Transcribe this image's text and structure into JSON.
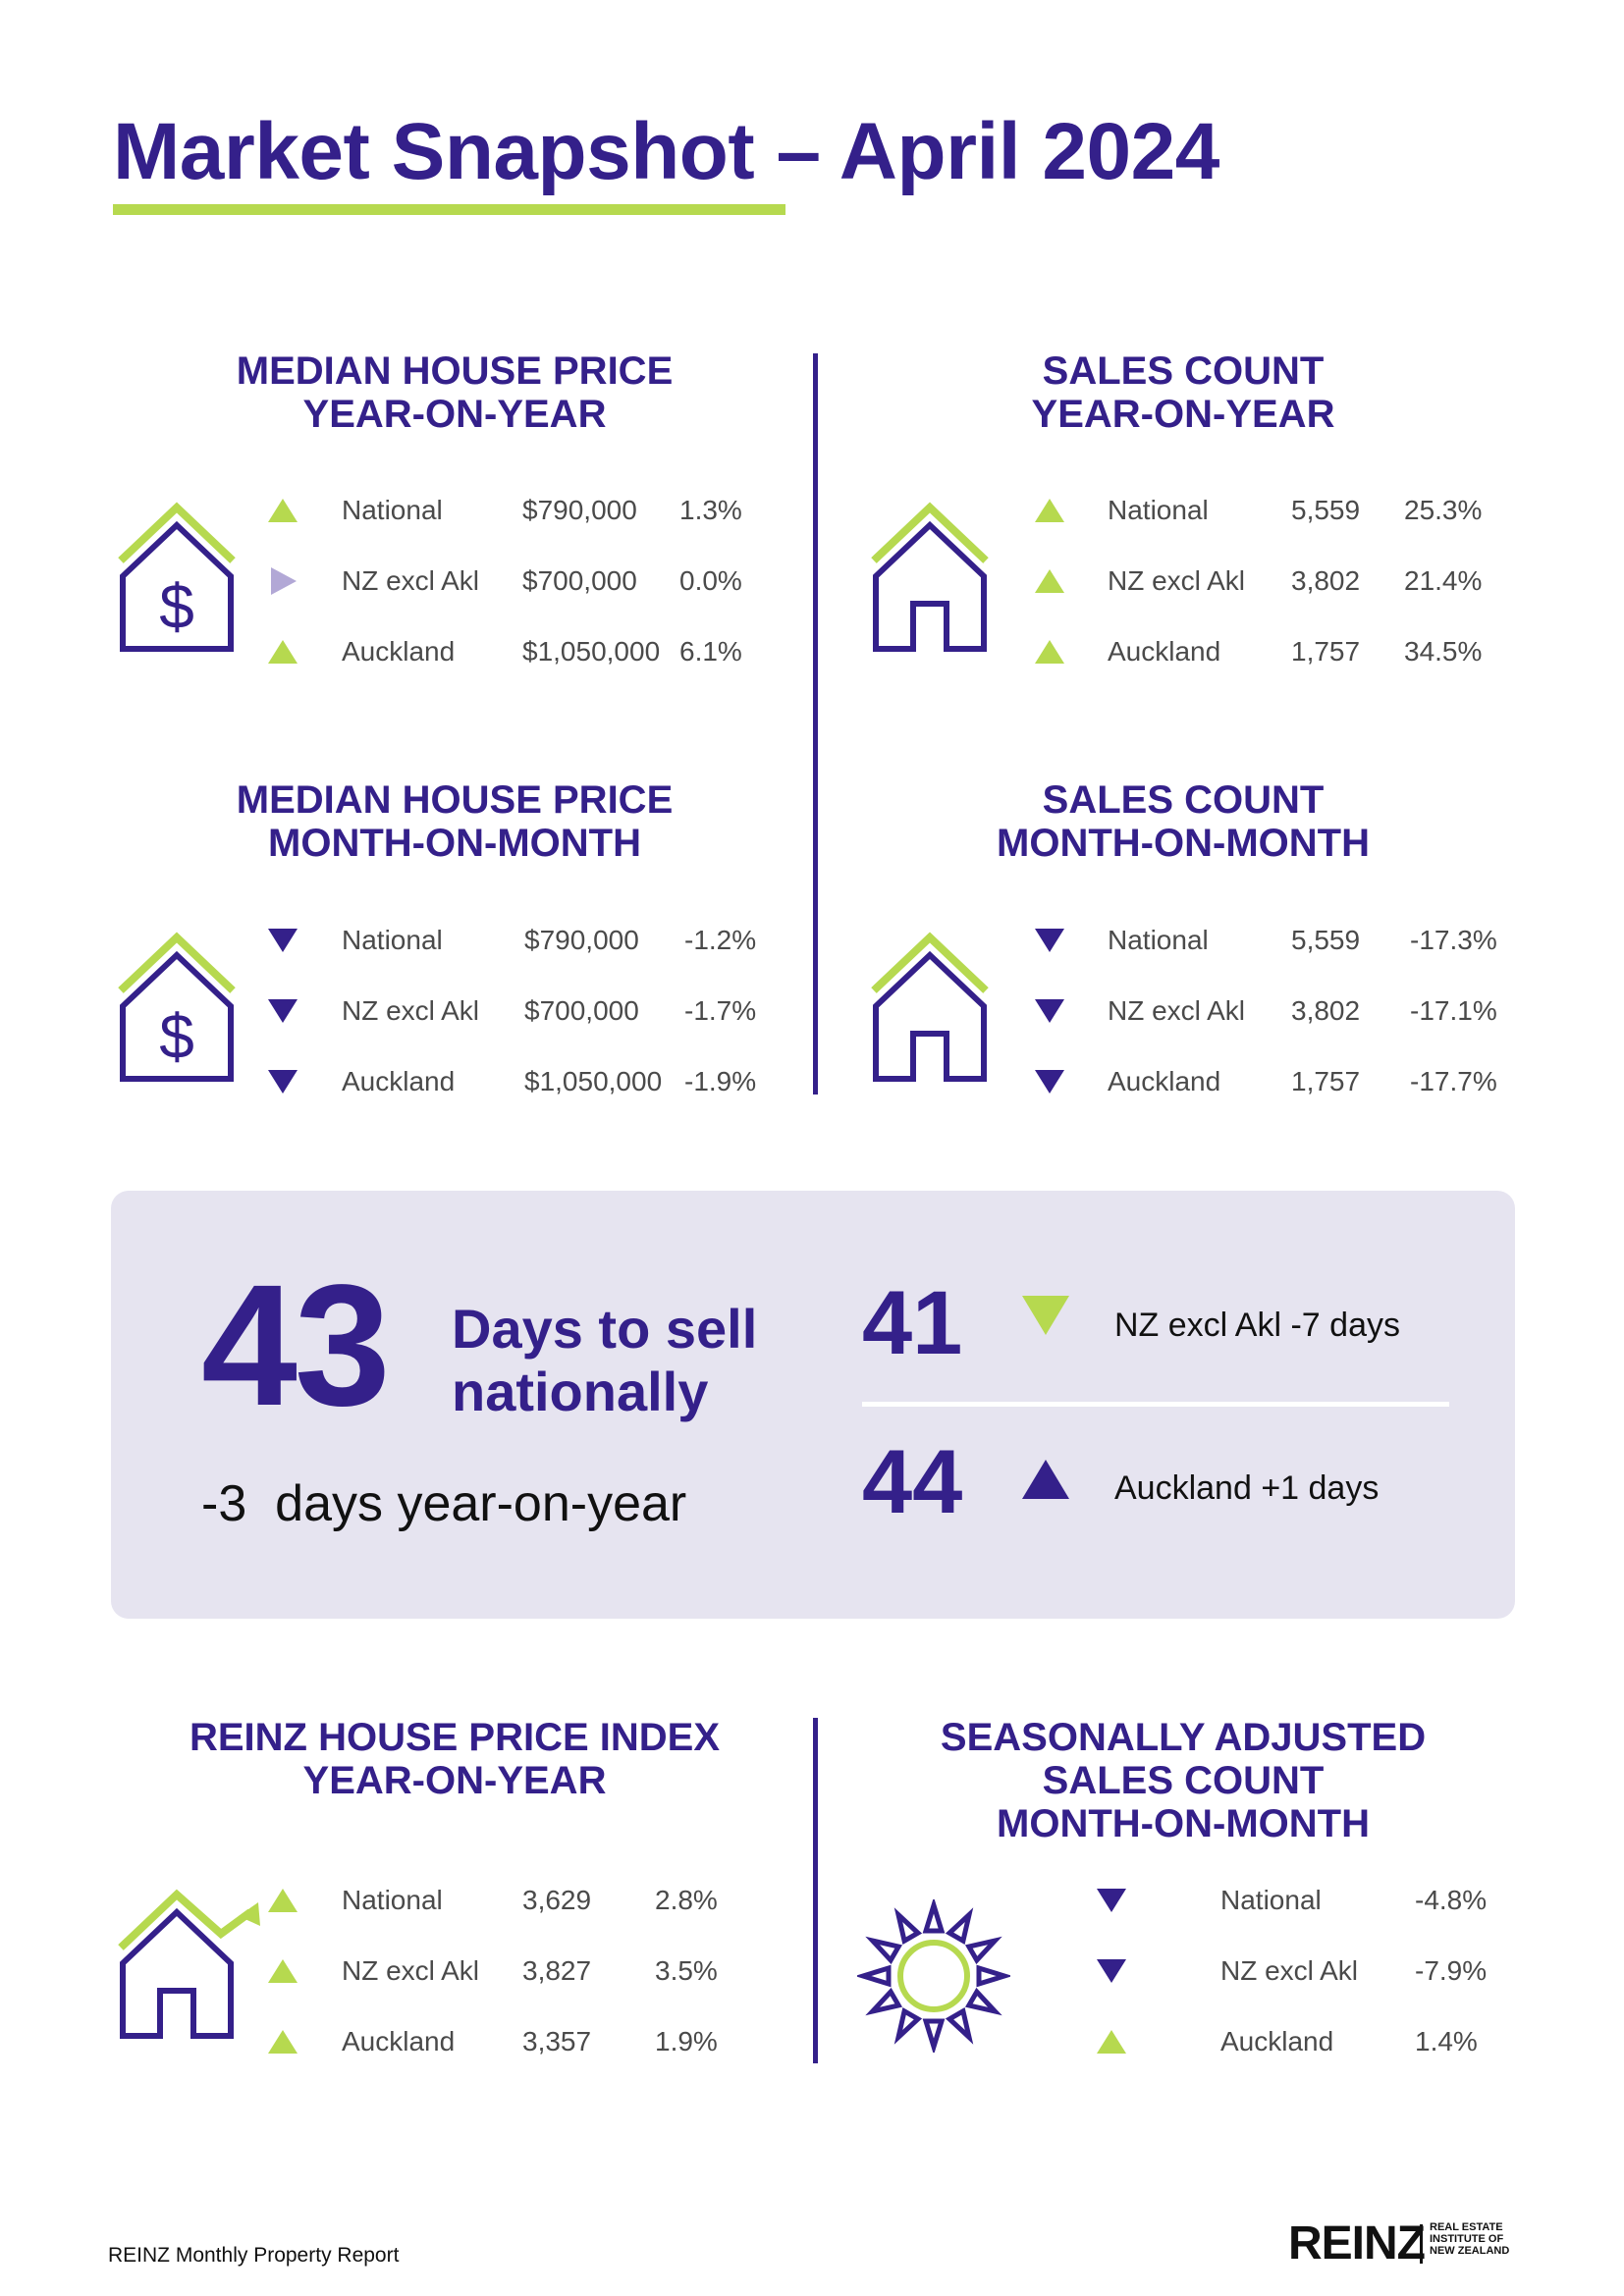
{
  "title": "Market Snapshot – April 2024",
  "colors": {
    "purple": "#34208a",
    "green": "#b6d94f",
    "neutral": "#b2a8d6",
    "panel": "#e6e4f0"
  },
  "sections": {
    "mhp_yoy": {
      "title_line1": "MEDIAN HOUSE PRICE",
      "title_line2": "YEAR-ON-YEAR",
      "icon": "house-dollar-icon",
      "rows": [
        {
          "trend": "up",
          "label": "National",
          "value": "$790,000",
          "change": "1.3%"
        },
        {
          "trend": "flat",
          "label": "NZ excl Akl",
          "value": "$700,000",
          "change": "0.0%"
        },
        {
          "trend": "up",
          "label": "Auckland",
          "value": "$1,050,000",
          "change": "6.1%"
        }
      ]
    },
    "sc_yoy": {
      "title_line1": "SALES COUNT",
      "title_line2": "YEAR-ON-YEAR",
      "icon": "house-icon",
      "rows": [
        {
          "trend": "up",
          "label": "National",
          "value": "5,559",
          "change": "25.3%"
        },
        {
          "trend": "up",
          "label": "NZ excl Akl",
          "value": "3,802",
          "change": "21.4%"
        },
        {
          "trend": "up",
          "label": "Auckland",
          "value": "1,757",
          "change": "34.5%"
        }
      ]
    },
    "mhp_mom": {
      "title_line1": "MEDIAN HOUSE PRICE",
      "title_line2": "MONTH-ON-MONTH",
      "icon": "house-dollar-icon",
      "rows": [
        {
          "trend": "down",
          "label": "National",
          "value": "$790,000",
          "change": "-1.2%"
        },
        {
          "trend": "down",
          "label": "NZ excl Akl",
          "value": "$700,000",
          "change": "-1.7%"
        },
        {
          "trend": "down",
          "label": "Auckland",
          "value": "$1,050,000",
          "change": "-1.9%"
        }
      ]
    },
    "sc_mom": {
      "title_line1": "SALES COUNT",
      "title_line2": "MONTH-ON-MONTH",
      "icon": "house-icon",
      "rows": [
        {
          "trend": "down",
          "label": "National",
          "value": "5,559",
          "change": "-17.3%"
        },
        {
          "trend": "down",
          "label": "NZ excl Akl",
          "value": "3,802",
          "change": "-17.1%"
        },
        {
          "trend": "down",
          "label": "Auckland",
          "value": "1,757",
          "change": "-17.7%"
        }
      ]
    },
    "hpi_yoy": {
      "title_line1": "REINZ HOUSE PRICE INDEX",
      "title_line2": "YEAR-ON-YEAR",
      "icon": "house-rising-arrow-icon",
      "rows": [
        {
          "trend": "up",
          "label": "National",
          "value": "3,629",
          "change": "2.8%"
        },
        {
          "trend": "up",
          "label": "NZ excl Akl",
          "value": "3,827",
          "change": "3.5%"
        },
        {
          "trend": "up",
          "label": "Auckland",
          "value": "3,357",
          "change": "1.9%"
        }
      ]
    },
    "sa_mom": {
      "title_line1": "SEASONALLY ADJUSTED",
      "title_line2": "SALES COUNT",
      "title_line3": "MONTH-ON-MONTH",
      "icon": "sun-icon",
      "rows": [
        {
          "trend": "down",
          "label": "National",
          "change": "-4.8%"
        },
        {
          "trend": "down",
          "label": "NZ excl Akl",
          "change": "-7.9%"
        },
        {
          "trend": "up",
          "label": "Auckland",
          "change": "1.4%"
        }
      ]
    }
  },
  "days_to_sell": {
    "national_value": "43",
    "national_line1": "Days to sell",
    "national_line2": "nationally",
    "national_change": "-3",
    "national_change_suffix": "days year-on-year",
    "nz_excl_akl": {
      "value": "41",
      "trend": "down",
      "text": "NZ excl Akl -7  days"
    },
    "auckland": {
      "value": "44",
      "trend": "up",
      "text": "Auckland +1  days"
    }
  },
  "footer": {
    "report_name": "REINZ Monthly Property Report",
    "logo_word": "REINZ",
    "logo_line1": "REAL ESTATE",
    "logo_line2": "INSTITUTE OF",
    "logo_line3": "NEW ZEALAND"
  }
}
